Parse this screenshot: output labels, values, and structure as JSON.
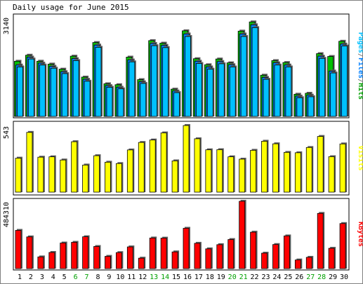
{
  "chart_data": [
    {
      "type": "bar",
      "title": "Daily usage for June 2015",
      "xlabel": "",
      "ylabel": "Pages/Files/Hits",
      "ylabel_parts": [
        {
          "text": "Pages",
          "color": "#00c0ff"
        },
        {
          "text": "/",
          "color": "#808080"
        },
        {
          "text": "Files",
          "color": "#0080ff"
        },
        {
          "text": "/",
          "color": "#808080"
        },
        {
          "text": "Hits",
          "color": "#00a000"
        }
      ],
      "y_max_label": "3140",
      "ylim": [
        0,
        3140
      ],
      "grid": false,
      "categories": [
        "1",
        "2",
        "3",
        "4",
        "5",
        "6",
        "7",
        "8",
        "9",
        "10",
        "11",
        "12",
        "13",
        "14",
        "15",
        "16",
        "17",
        "18",
        "19",
        "20",
        "21",
        "22",
        "23",
        "24",
        "25",
        "26",
        "27",
        "28",
        "29",
        "30"
      ],
      "weekend_days": [
        "6",
        "7",
        "13",
        "14",
        "20",
        "21",
        "27",
        "28"
      ],
      "series": [
        {
          "name": "Hits",
          "color": "#00c000",
          "values": [
            1740,
            1930,
            1740,
            1650,
            1490,
            1900,
            1240,
            2330,
            1030,
            1000,
            1870,
            1160,
            2390,
            2310,
            860,
            2700,
            1820,
            1630,
            1810,
            1690,
            2690,
            2980,
            1300,
            1760,
            1700,
            700,
            730,
            1980,
            1890,
            2370
          ]
        },
        {
          "name": "Files",
          "color": "#0080ff",
          "values": [
            1620,
            1870,
            1680,
            1580,
            1410,
            1820,
            1170,
            2250,
            970,
            920,
            1780,
            1090,
            2300,
            2240,
            800,
            2600,
            1740,
            1560,
            1730,
            1630,
            2600,
            2890,
            1230,
            1690,
            1620,
            640,
            670,
            1900,
            1430,
            2280
          ]
        },
        {
          "name": "Pages",
          "color": "#00c0ff",
          "values": [
            1560,
            1810,
            1620,
            1520,
            1350,
            1760,
            1110,
            2180,
            920,
            870,
            1720,
            1040,
            2230,
            2170,
            750,
            2520,
            1670,
            1490,
            1660,
            1560,
            2520,
            2800,
            1170,
            1620,
            1560,
            590,
            620,
            1830,
            1370,
            2220
          ]
        }
      ]
    },
    {
      "type": "bar",
      "ylabel": "Visits",
      "y_max_label": "543",
      "ylim": [
        0,
        543
      ],
      "series": [
        {
          "name": "Visits",
          "color": "#ffff00",
          "values": [
            277,
            487,
            285,
            288,
            262,
            411,
            221,
            297,
            244,
            233,
            344,
            405,
            425,
            483,
            255,
            543,
            435,
            345,
            346,
            288,
            269,
            341,
            415,
            394,
            324,
            321,
            364,
            454,
            289,
            393
          ]
        }
      ]
    },
    {
      "type": "bar",
      "ylabel": "KBytes",
      "y_max_label": "484310",
      "ylim": [
        0,
        484310
      ],
      "series": [
        {
          "name": "KBytes",
          "color": "#ff0000",
          "values": [
            275000,
            228000,
            84000,
            116000,
            184000,
            189000,
            229000,
            159000,
            88000,
            115000,
            156000,
            75000,
            220000,
            219000,
            120000,
            290000,
            182000,
            142000,
            172000,
            209000,
            484310,
            262000,
            111000,
            173000,
            235000,
            62000,
            81000,
            397000,
            146000,
            324000
          ]
        }
      ]
    }
  ]
}
